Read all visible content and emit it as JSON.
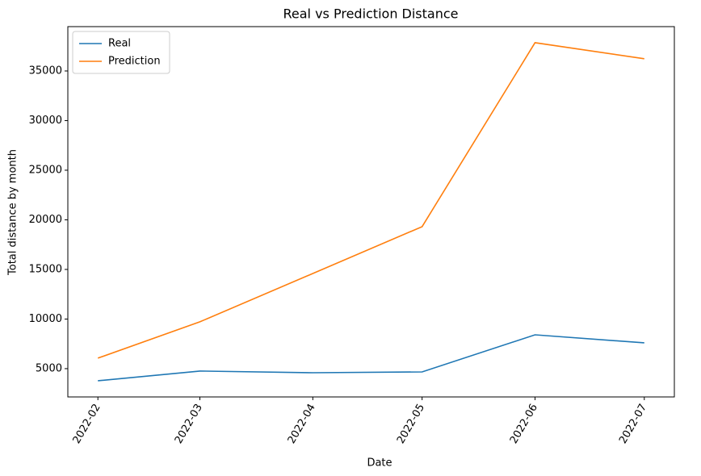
{
  "chart_data": {
    "type": "line",
    "title": "Real vs Prediction Distance",
    "x_label": "Date",
    "y_label": "Total distance by month",
    "x": [
      "2022-02",
      "2022-03",
      "2022-04",
      "2022-05",
      "2022-06",
      "2022-07"
    ],
    "series": [
      {
        "name": "Real",
        "color": "#1f77b4",
        "values": [
          3780,
          4760,
          4590,
          4670,
          8410,
          7600
        ]
      },
      {
        "name": "Prediction",
        "color": "#ff7f0e",
        "values": [
          6060,
          9720,
          14590,
          19310,
          37850,
          36230
        ]
      }
    ],
    "xticks": [
      "2022-02",
      "2022-03",
      "2022-04",
      "2022-05",
      "2022-06",
      "2022-07"
    ],
    "ylim": [
      2150,
      39470
    ],
    "yticks": [
      5000,
      10000,
      15000,
      20000,
      25000,
      30000,
      35000
    ],
    "legend": "upper-left"
  }
}
